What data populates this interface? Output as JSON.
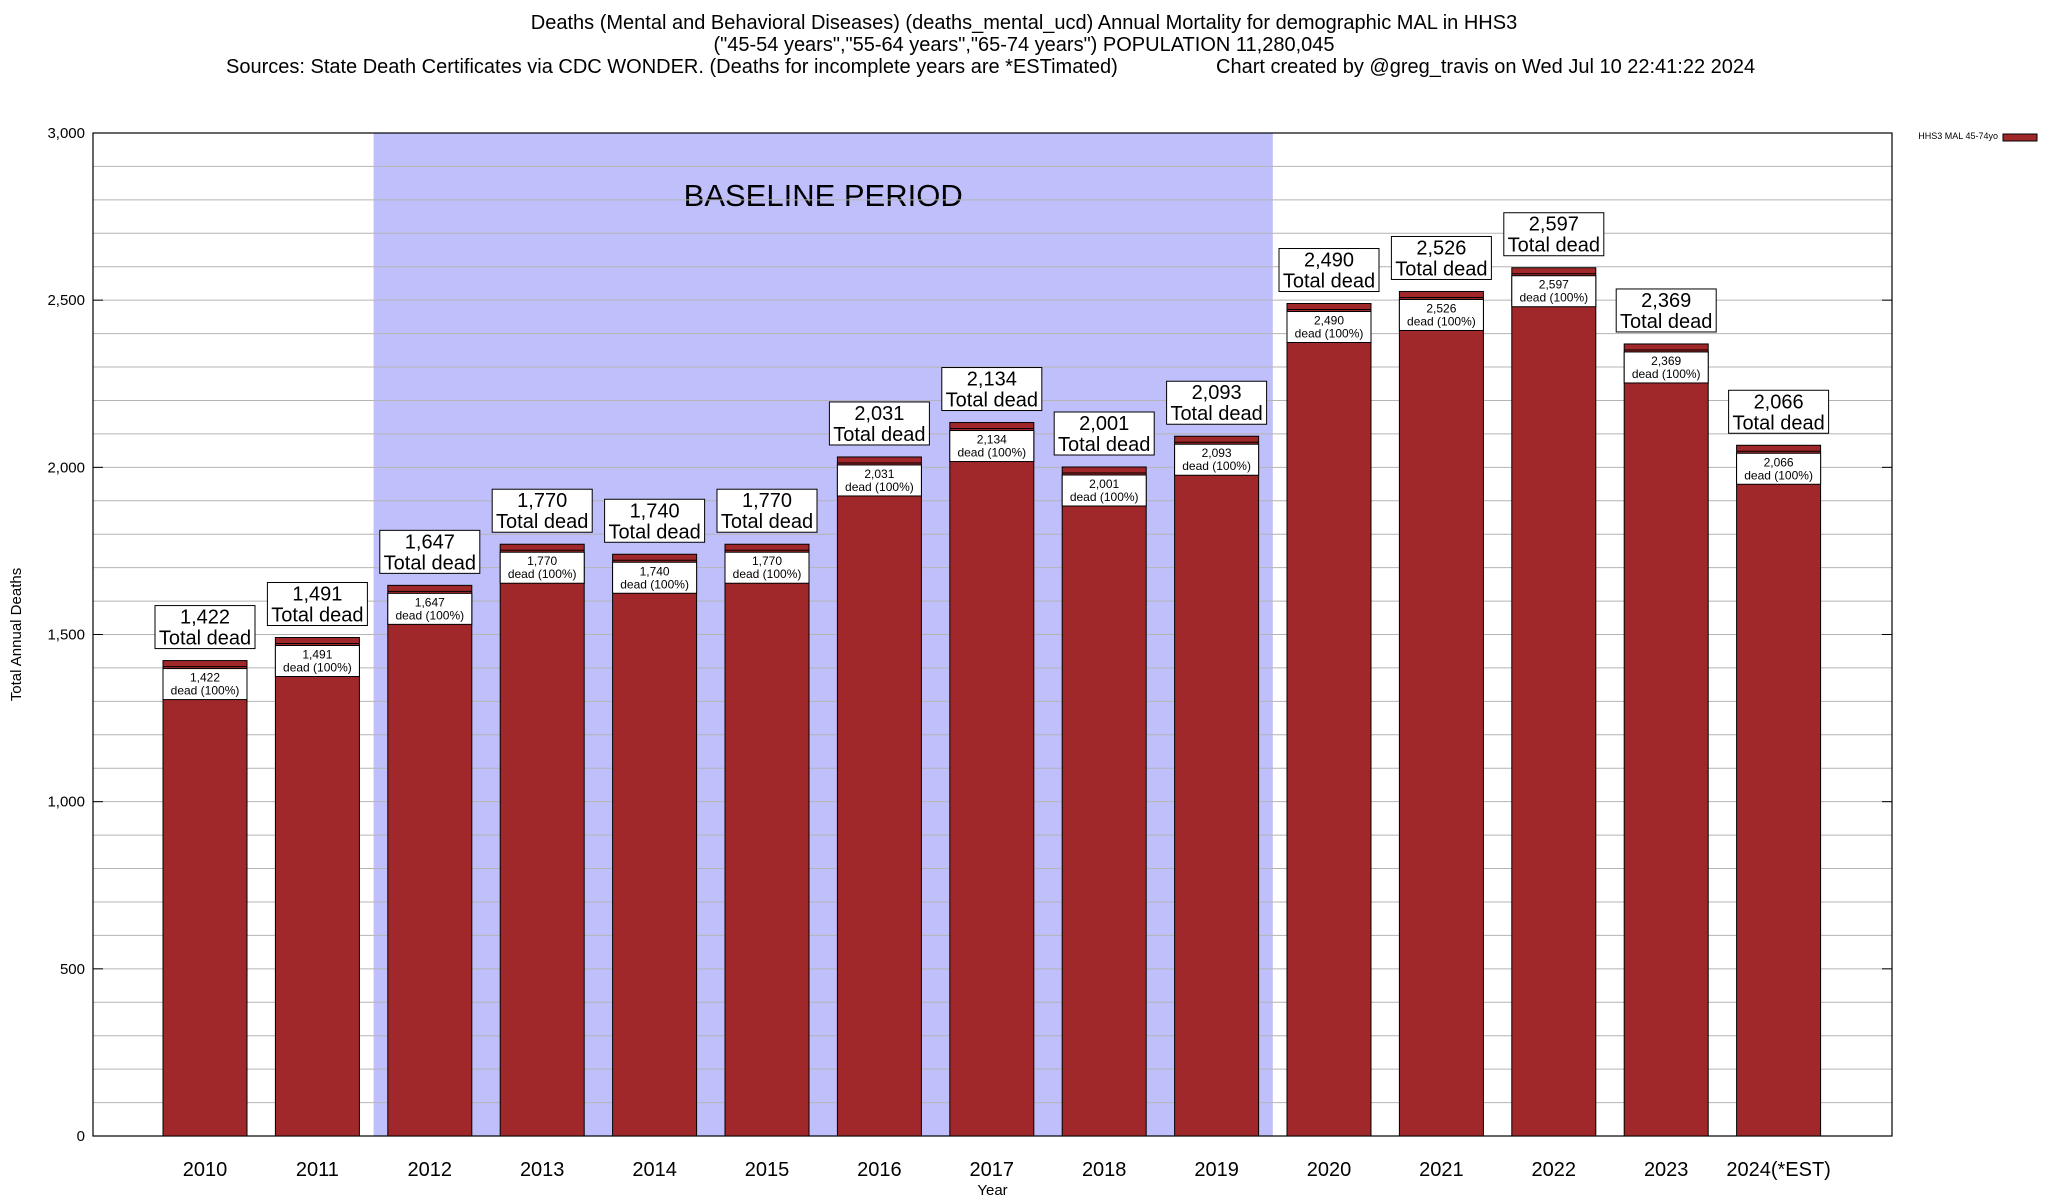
{
  "header": {
    "title_line1": "Deaths (Mental and Behavioral Diseases) (deaths_mental_ucd) Annual Mortality for demographic MAL in HHS3",
    "title_line2": "(\"45-54 years\",\"55-64 years\",\"65-74 years\") POPULATION 11,280,045",
    "sources": "Sources: State Death Certificates via CDC WONDER. (Deaths for incomplete years are *ESTimated)",
    "credit": "Chart created by @greg_travis on Wed Jul 10 22:41:22 2024"
  },
  "colors": {
    "bar": "#a0282a",
    "baseline_band": "#bfbffc",
    "grid": "#b4b4b4"
  },
  "chart_data": {
    "type": "bar",
    "categories": [
      "2010",
      "2011",
      "2012",
      "2013",
      "2014",
      "2015",
      "2016",
      "2017",
      "2018",
      "2019",
      "2020",
      "2021",
      "2022",
      "2023",
      "2024(*EST)"
    ],
    "series": [
      {
        "name": "HHS3 MAL 45-74yo",
        "values": [
          1422,
          1491,
          1647,
          1770,
          1740,
          1770,
          2031,
          2134,
          2001,
          2093,
          2490,
          2526,
          2597,
          2369,
          2066
        ]
      }
    ],
    "value_labels": [
      "1,422",
      "1,491",
      "1,647",
      "1,770",
      "1,740",
      "1,770",
      "2,031",
      "2,134",
      "2,001",
      "2,093",
      "2,490",
      "2,526",
      "2,597",
      "2,369",
      "2,066"
    ],
    "percent_labels": [
      "dead (100%)",
      "dead (100%)",
      "dead (100%)",
      "dead (100%)",
      "dead (100%)",
      "dead (100%)",
      "dead (100%)",
      "dead (100%)",
      "dead (100%)",
      "dead (100%)",
      "dead (100%)",
      "dead (100%)",
      "dead (100%)",
      "dead (100%)",
      "dead (100%)"
    ],
    "total_label": "Total dead",
    "xlabel": "Year",
    "ylabel": "Total Annual Deaths",
    "ylim": [
      0,
      3000
    ],
    "yticks": [
      0,
      500,
      1000,
      1500,
      2000,
      2500,
      3000
    ],
    "ytick_labels": [
      "0",
      "500",
      "1,000",
      "1,500",
      "2,000",
      "2,500",
      "3,000"
    ],
    "minor_grid_step": 100,
    "grid": true,
    "baseline_period": {
      "label": "BASELINE PERIOD",
      "from": "2012",
      "to": "2019"
    },
    "legend": {
      "position": "top-right",
      "label": "HHS3 MAL 45-74yo"
    }
  }
}
